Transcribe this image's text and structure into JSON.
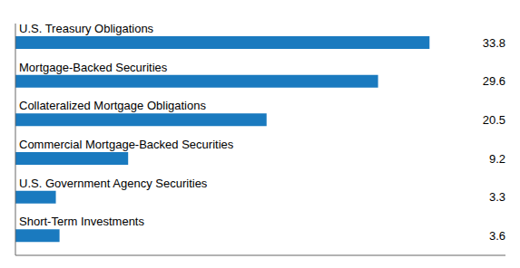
{
  "chart_data": {
    "type": "bar",
    "orientation": "horizontal",
    "categories": [
      "Short-Term Investments",
      "U.S. Government Agency Securities",
      "Commercial Mortgage-Backed Securities",
      "Collateralized Mortgage Obligations",
      "Mortgage-Backed Securities",
      "U.S. Treasury Obligations"
    ],
    "values": [
      3.6,
      3.3,
      9.2,
      20.5,
      29.6,
      33.8
    ],
    "color": "#1a7abf",
    "xlim": [
      0,
      40
    ],
    "data_labels": true,
    "tick_labels": false
  }
}
